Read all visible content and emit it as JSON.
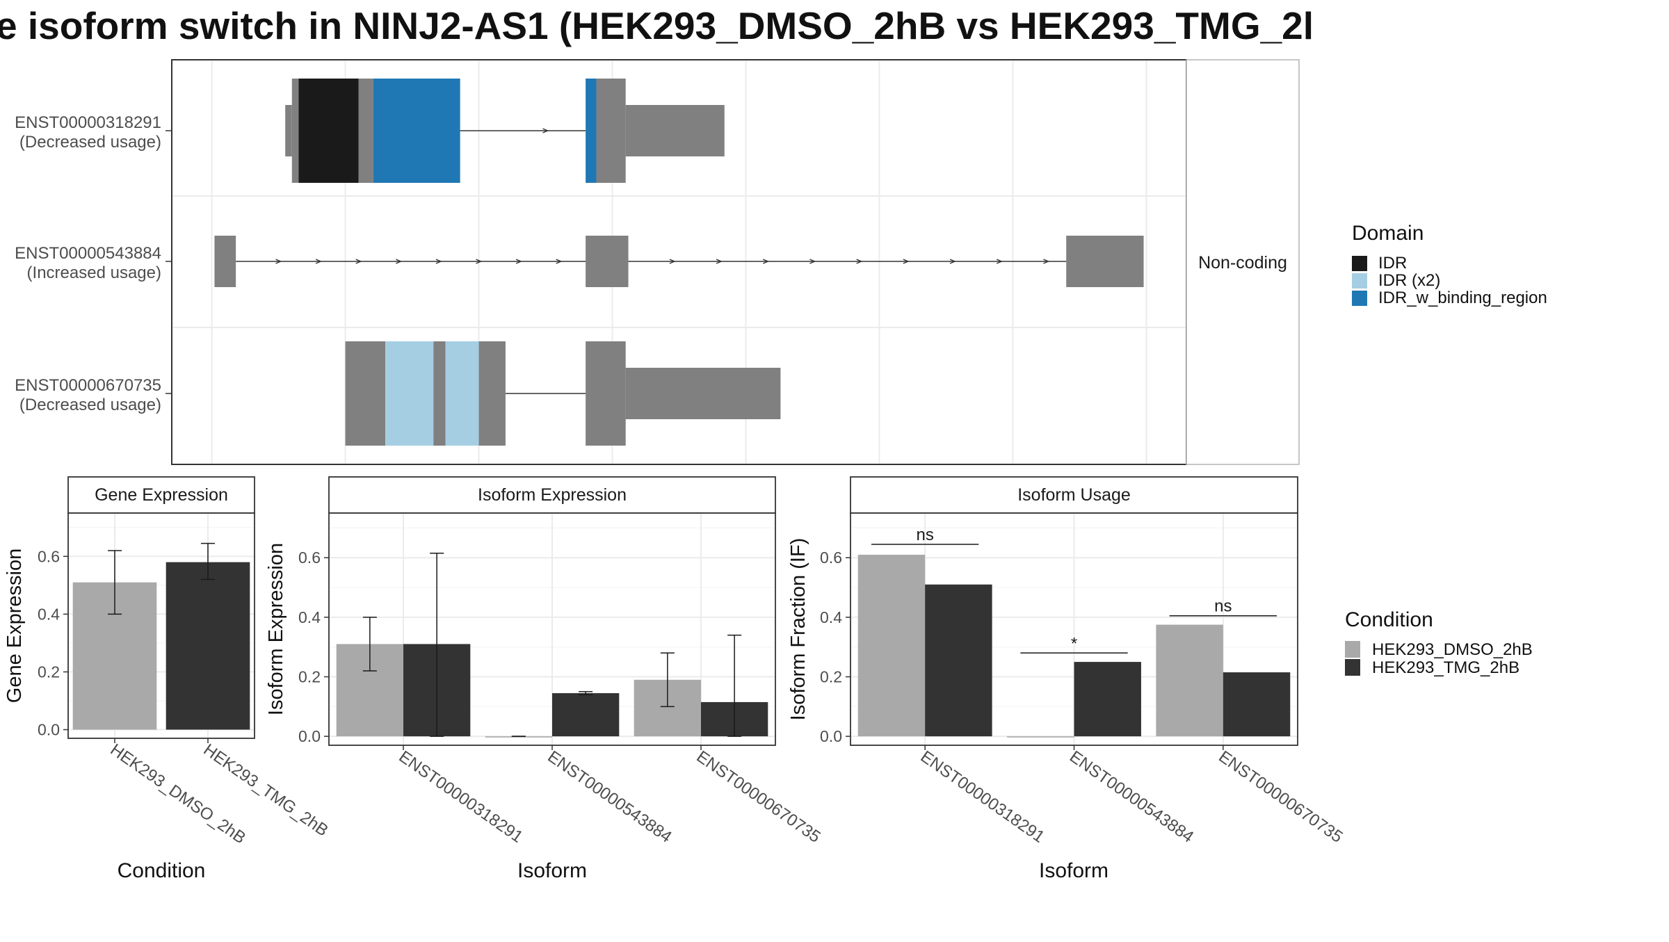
{
  "title": "e isoform switch in NINJ2-AS1 (HEK293_DMSO_2hB vs HEK293_TMG_2l",
  "colors": {
    "background": "#ffffff",
    "panel_border": "#333333",
    "grid": "#ebebeb",
    "exon": "#808080",
    "idr": "#1a1a1a",
    "idr_x2": "#a6cee3",
    "idr_w_binding_region": "#1f78b4",
    "dmso": "#a9a9a9",
    "tmg": "#333333",
    "strip_bg": "#ffffff",
    "text": "#222222",
    "axis_text": "#4d4d4d"
  },
  "structure": {
    "isoforms": [
      {
        "id": "ENST00000318291",
        "usage": "(Decreased usage)",
        "exons": [
          {
            "start": 0.5,
            "end": 1.0,
            "kind": "exon_small"
          },
          {
            "start": 1.0,
            "end": 1.5,
            "kind": "exon"
          },
          {
            "start": 1.5,
            "end": 6.0,
            "kind": "idr"
          },
          {
            "start": 6.0,
            "end": 7.1,
            "kind": "exon"
          },
          {
            "start": 7.1,
            "end": 13.6,
            "kind": "idr_w_binding_region"
          },
          {
            "start": 23.0,
            "end": 23.8,
            "kind": "idr_w_binding_region"
          },
          {
            "start": 23.8,
            "end": 26.0,
            "kind": "exon"
          },
          {
            "start": 26.0,
            "end": 33.4,
            "kind": "exon_small"
          }
        ],
        "intron": [
          13.6,
          23.0
        ],
        "arrows": [
          20.0
        ]
      },
      {
        "id": "ENST00000543884",
        "usage": "(Increased usage)",
        "exons": [
          {
            "start": -4.8,
            "end": -3.2,
            "kind": "exon_mid"
          },
          {
            "start": 23.0,
            "end": 26.2,
            "kind": "exon_mid"
          },
          {
            "start": 59.0,
            "end": 64.8,
            "kind": "exon_mid"
          }
        ],
        "intron": [
          -3.2,
          59.0
        ],
        "arrows": [
          0.0,
          3.0,
          6.0,
          9.0,
          12.0,
          15.0,
          18.0,
          21.0,
          29.5,
          33.0,
          36.5,
          40.0,
          43.5,
          47.0,
          50.5,
          54.0,
          57.5
        ]
      },
      {
        "id": "ENST00000670735",
        "usage": "(Decreased usage)",
        "exons": [
          {
            "start": 5.0,
            "end": 8.0,
            "kind": "exon"
          },
          {
            "start": 8.0,
            "end": 11.6,
            "kind": "idr_x2"
          },
          {
            "start": 11.6,
            "end": 12.5,
            "kind": "exon"
          },
          {
            "start": 12.5,
            "end": 15.0,
            "kind": "idr_x2"
          },
          {
            "start": 15.0,
            "end": 17.0,
            "kind": "exon"
          },
          {
            "start": 23.0,
            "end": 26.0,
            "kind": "exon"
          },
          {
            "start": 26.0,
            "end": 37.6,
            "kind": "exon_small"
          }
        ],
        "intron": [
          17.0,
          23.0
        ],
        "arrows": []
      }
    ],
    "strip_label": "Non-coding",
    "x_range": [
      -8,
      68
    ]
  },
  "legends": {
    "domain": {
      "title": "Domain",
      "items": [
        {
          "label": "IDR",
          "color": "#1a1a1a"
        },
        {
          "label": "IDR (x2)",
          "color": "#a6cee3"
        },
        {
          "label": "IDR_w_binding_region",
          "color": "#1f78b4"
        }
      ]
    },
    "condition": {
      "title": "Condition",
      "items": [
        {
          "label": "HEK293_DMSO_2hB",
          "color": "#a9a9a9"
        },
        {
          "label": "HEK293_TMG_2hB",
          "color": "#333333"
        }
      ]
    }
  },
  "chart_data": [
    {
      "type": "bar",
      "strip": "Gene Expression",
      "xlabel": "Condition",
      "ylabel": "Gene Expression",
      "categories": [
        "HEK293_DMSO_2hB",
        "HEK293_TMG_2hB"
      ],
      "values": [
        0.51,
        0.58
      ],
      "errors": [
        [
          0.4,
          0.62
        ],
        [
          0.52,
          0.645
        ]
      ],
      "ylim": [
        -0.03,
        0.75
      ],
      "yticks": [
        "0.0",
        "0.2",
        "0.4",
        "0.6"
      ],
      "ytick_values": [
        0,
        0.2,
        0.4,
        0.6
      ],
      "grid": true
    },
    {
      "type": "bar",
      "strip": "Isoform Expression",
      "xlabel": "Isoform",
      "ylabel": "Isoform Expression",
      "categories": [
        "ENST00000318291",
        "ENST00000543884",
        "ENST00000670735"
      ],
      "series": [
        {
          "name": "HEK293_DMSO_2hB",
          "values": [
            0.31,
            0.0,
            0.19
          ],
          "errors": [
            [
              0.22,
              0.4
            ],
            [
              0.0,
              0.0
            ],
            [
              0.1,
              0.28
            ]
          ]
        },
        {
          "name": "HEK293_TMG_2hB",
          "values": [
            0.31,
            0.145,
            0.115
          ],
          "errors": [
            [
              0.0,
              0.615
            ],
            [
              0.14,
              0.15
            ],
            [
              0.0,
              0.34
            ]
          ]
        }
      ],
      "ylim": [
        -0.03,
        0.75
      ],
      "yticks": [
        "0.0",
        "0.2",
        "0.4",
        "0.6"
      ],
      "ytick_values": [
        0,
        0.2,
        0.4,
        0.6
      ],
      "grid": true
    },
    {
      "type": "bar",
      "strip": "Isoform Usage",
      "xlabel": "Isoform",
      "ylabel": "Isoform Fraction (IF)",
      "categories": [
        "ENST00000318291",
        "ENST00000543884",
        "ENST00000670735"
      ],
      "series": [
        {
          "name": "HEK293_DMSO_2hB",
          "values": [
            0.61,
            0.0,
            0.375
          ]
        },
        {
          "name": "HEK293_TMG_2hB",
          "values": [
            0.51,
            0.25,
            0.215
          ]
        }
      ],
      "significance": [
        {
          "category": 0,
          "label": "ns",
          "y": 0.645
        },
        {
          "category": 1,
          "label": "*",
          "y": 0.28
        },
        {
          "category": 2,
          "label": "ns",
          "y": 0.405
        }
      ],
      "ylim": [
        -0.03,
        0.75
      ],
      "yticks": [
        "0.0",
        "0.2",
        "0.4",
        "0.6"
      ],
      "ytick_values": [
        0,
        0.2,
        0.4,
        0.6
      ],
      "grid": true
    }
  ]
}
